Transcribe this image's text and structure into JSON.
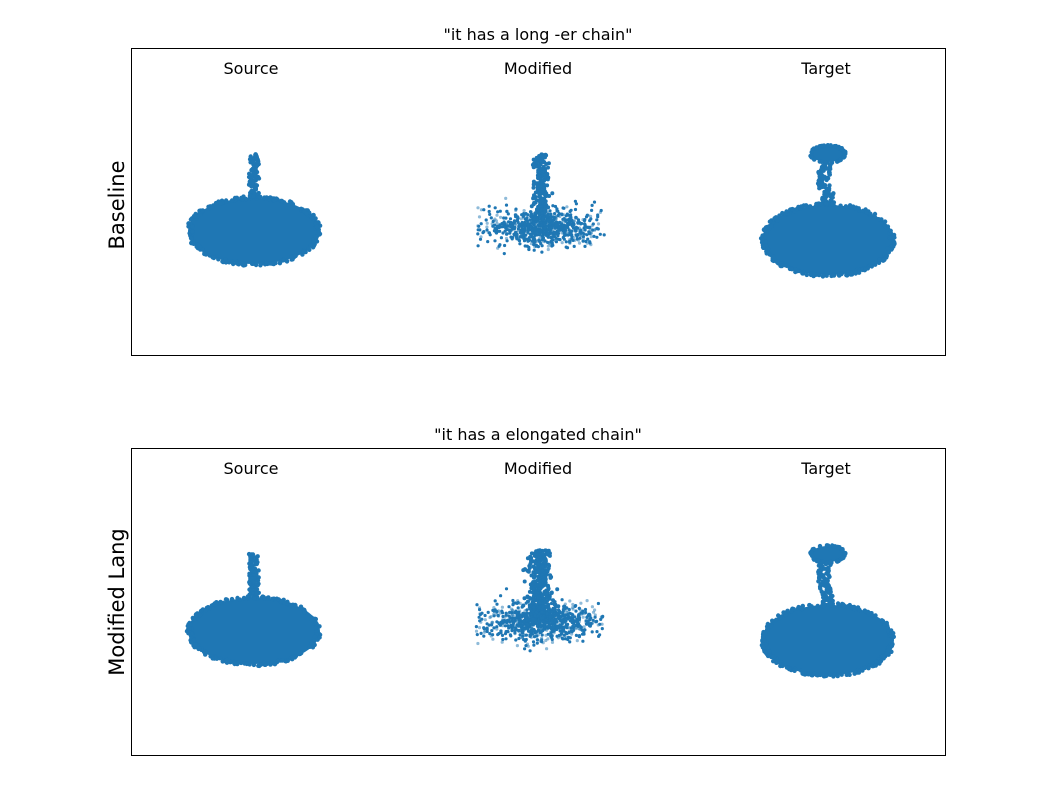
{
  "chart_data": [
    {
      "type": "scatter",
      "title": "\"it has a long -er chain\"",
      "ylabel": "Baseline",
      "columns": [
        "Source",
        "Modified",
        "Target"
      ],
      "grid": false,
      "point_color": "#1f77b4",
      "panels": [
        {
          "column": "Source",
          "shape": "chair-like disc base with vertical stem",
          "scatter": "dense"
        },
        {
          "column": "Modified",
          "shape": "sparse scattered base with vertical stem",
          "scatter": "sparse"
        },
        {
          "column": "Target",
          "shape": "disc base, curved stem, small disc top",
          "scatter": "dense"
        }
      ]
    },
    {
      "type": "scatter",
      "title": "\"it has a elongated chain\"",
      "ylabel": "Modified Lang",
      "columns": [
        "Source",
        "Modified",
        "Target"
      ],
      "grid": false,
      "point_color": "#1f77b4",
      "panels": [
        {
          "column": "Source",
          "shape": "chair-like disc base with vertical stem",
          "scatter": "dense"
        },
        {
          "column": "Modified",
          "shape": "sparse scattered base with thick stem",
          "scatter": "sparse"
        },
        {
          "column": "Target",
          "shape": "disc base, curved stem, small disc top",
          "scatter": "dense"
        }
      ]
    }
  ]
}
